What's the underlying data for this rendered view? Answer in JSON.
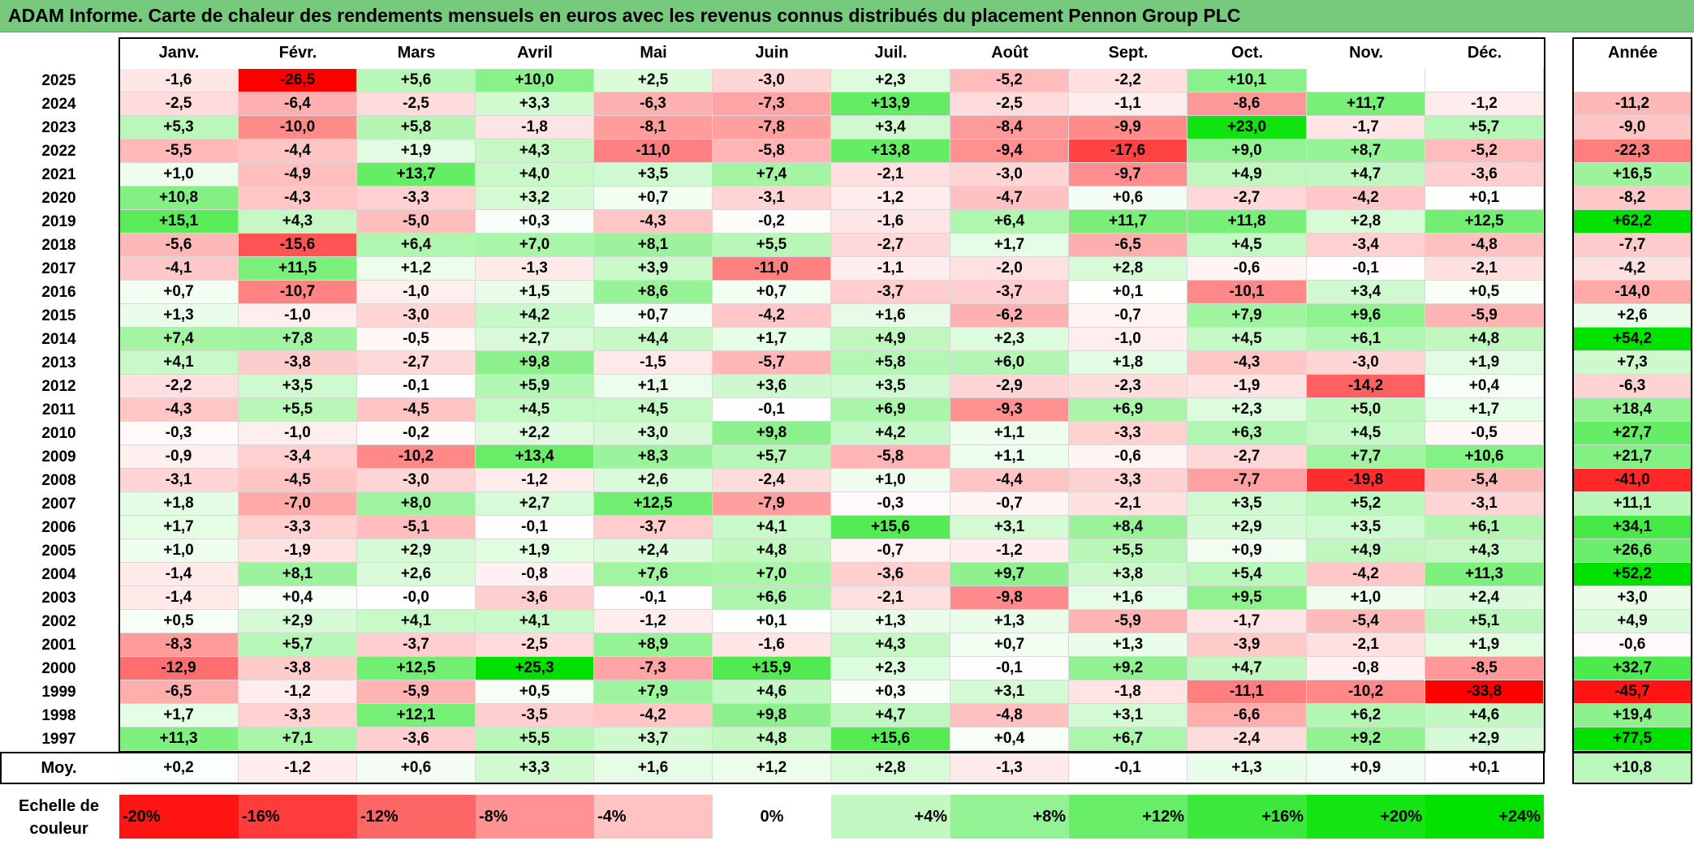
{
  "title": "ADAM Informe. Carte de chaleur des rendements mensuels en euros avec les revenus connus distribués du placement Pennon Group PLC",
  "chart_data": {
    "type": "heatmap",
    "months": [
      "Janv.",
      "Févr.",
      "Mars",
      "Avril",
      "Mai",
      "Juin",
      "Juil.",
      "Août",
      "Sept.",
      "Oct.",
      "Nov.",
      "Déc."
    ],
    "year_header": "Année",
    "rows": [
      {
        "year": "2025",
        "values": [
          "-1,6",
          "-26,5",
          "+5,6",
          "+10,0",
          "+2,5",
          "-3,0",
          "+2,3",
          "-5,2",
          "-2,2",
          "+10,1",
          "",
          ""
        ],
        "annual": ""
      },
      {
        "year": "2024",
        "values": [
          "-2,5",
          "-6,4",
          "-2,5",
          "+3,3",
          "-6,3",
          "-7,3",
          "+13,9",
          "-2,5",
          "-1,1",
          "-8,6",
          "+11,7",
          "-1,2"
        ],
        "annual": "-11,2"
      },
      {
        "year": "2023",
        "values": [
          "+5,3",
          "-10,0",
          "+5,8",
          "-1,8",
          "-8,1",
          "-7,8",
          "+3,4",
          "-8,4",
          "-9,9",
          "+23,0",
          "-1,7",
          "+5,7"
        ],
        "annual": "-9,0"
      },
      {
        "year": "2022",
        "values": [
          "-5,5",
          "-4,4",
          "+1,9",
          "+4,3",
          "-11,0",
          "-5,8",
          "+13,8",
          "-9,4",
          "-17,6",
          "+9,0",
          "+8,7",
          "-5,2"
        ],
        "annual": "-22,3"
      },
      {
        "year": "2021",
        "values": [
          "+1,0",
          "-4,9",
          "+13,7",
          "+4,0",
          "+3,5",
          "+7,4",
          "-2,1",
          "-3,0",
          "-9,7",
          "+4,9",
          "+4,7",
          "-3,6"
        ],
        "annual": "+16,5"
      },
      {
        "year": "2020",
        "values": [
          "+10,8",
          "-4,3",
          "-3,3",
          "+3,2",
          "+0,7",
          "-3,1",
          "-1,2",
          "-4,7",
          "+0,6",
          "-2,7",
          "-4,2",
          "+0,1"
        ],
        "annual": "-8,2"
      },
      {
        "year": "2019",
        "values": [
          "+15,1",
          "+4,3",
          "-5,0",
          "+0,3",
          "-4,3",
          "-0,2",
          "-1,6",
          "+6,4",
          "+11,7",
          "+11,8",
          "+2,8",
          "+12,5"
        ],
        "annual": "+62,2"
      },
      {
        "year": "2018",
        "values": [
          "-5,6",
          "-15,6",
          "+6,4",
          "+7,0",
          "+8,1",
          "+5,5",
          "-2,7",
          "+1,7",
          "-6,5",
          "+4,5",
          "-3,4",
          "-4,8"
        ],
        "annual": "-7,7"
      },
      {
        "year": "2017",
        "values": [
          "-4,1",
          "+11,5",
          "+1,2",
          "-1,3",
          "+3,9",
          "-11,0",
          "-1,1",
          "-2,0",
          "+2,8",
          "-0,6",
          "-0,1",
          "-2,1"
        ],
        "annual": "-4,2"
      },
      {
        "year": "2016",
        "values": [
          "+0,7",
          "-10,7",
          "-1,0",
          "+1,5",
          "+8,6",
          "+0,7",
          "-3,7",
          "-3,7",
          "+0,1",
          "-10,1",
          "+3,4",
          "+0,5"
        ],
        "annual": "-14,0"
      },
      {
        "year": "2015",
        "values": [
          "+1,3",
          "-1,0",
          "-3,0",
          "+4,2",
          "+0,7",
          "-4,2",
          "+1,6",
          "-6,2",
          "-0,7",
          "+7,9",
          "+9,6",
          "-5,9"
        ],
        "annual": "+2,6"
      },
      {
        "year": "2014",
        "values": [
          "+7,4",
          "+7,8",
          "-0,5",
          "+2,7",
          "+4,4",
          "+1,7",
          "+4,9",
          "+2,3",
          "-1,0",
          "+4,5",
          "+6,1",
          "+4,8"
        ],
        "annual": "+54,2"
      },
      {
        "year": "2013",
        "values": [
          "+4,1",
          "-3,8",
          "-2,7",
          "+9,8",
          "-1,5",
          "-5,7",
          "+5,8",
          "+6,0",
          "+1,8",
          "-4,3",
          "-3,0",
          "+1,9"
        ],
        "annual": "+7,3"
      },
      {
        "year": "2012",
        "values": [
          "-2,2",
          "+3,5",
          "-0,1",
          "+5,9",
          "+1,1",
          "+3,6",
          "+3,5",
          "-2,9",
          "-2,3",
          "-1,9",
          "-14,2",
          "+0,4"
        ],
        "annual": "-6,3"
      },
      {
        "year": "2011",
        "values": [
          "-4,3",
          "+5,5",
          "-4,5",
          "+4,5",
          "+4,5",
          "-0,1",
          "+6,9",
          "-9,3",
          "+6,9",
          "+2,3",
          "+5,0",
          "+1,7"
        ],
        "annual": "+18,4"
      },
      {
        "year": "2010",
        "values": [
          "-0,3",
          "-1,0",
          "-0,2",
          "+2,2",
          "+3,0",
          "+9,8",
          "+4,2",
          "+1,1",
          "-3,3",
          "+6,3",
          "+4,5",
          "-0,5"
        ],
        "annual": "+27,7"
      },
      {
        "year": "2009",
        "values": [
          "-0,9",
          "-3,4",
          "-10,2",
          "+13,4",
          "+8,3",
          "+5,7",
          "-5,8",
          "+1,1",
          "-0,6",
          "-2,7",
          "+7,7",
          "+10,6"
        ],
        "annual": "+21,7"
      },
      {
        "year": "2008",
        "values": [
          "-3,1",
          "-4,5",
          "-3,0",
          "-1,2",
          "+2,6",
          "-2,4",
          "+1,0",
          "-4,4",
          "-3,3",
          "-7,7",
          "-19,8",
          "-5,4"
        ],
        "annual": "-41,0"
      },
      {
        "year": "2007",
        "values": [
          "+1,8",
          "-7,0",
          "+8,0",
          "+2,7",
          "+12,5",
          "-7,9",
          "-0,3",
          "-0,7",
          "-2,1",
          "+3,5",
          "+5,2",
          "-3,1"
        ],
        "annual": "+11,1"
      },
      {
        "year": "2006",
        "values": [
          "+1,7",
          "-3,3",
          "-5,1",
          "-0,1",
          "-3,7",
          "+4,1",
          "+15,6",
          "+3,1",
          "+8,4",
          "+2,9",
          "+3,5",
          "+6,1"
        ],
        "annual": "+34,1"
      },
      {
        "year": "2005",
        "values": [
          "+1,0",
          "-1,9",
          "+2,9",
          "+1,9",
          "+2,4",
          "+4,8",
          "-0,7",
          "-1,2",
          "+5,5",
          "+0,9",
          "+4,9",
          "+4,3"
        ],
        "annual": "+26,6"
      },
      {
        "year": "2004",
        "values": [
          "-1,4",
          "+8,1",
          "+2,6",
          "-0,8",
          "+7,6",
          "+7,0",
          "-3,6",
          "+9,7",
          "+3,8",
          "+5,4",
          "-4,2",
          "+11,3"
        ],
        "annual": "+52,2"
      },
      {
        "year": "2003",
        "values": [
          "-1,4",
          "+0,4",
          "-0,0",
          "-3,6",
          "-0,1",
          "+6,6",
          "-2,1",
          "-9,8",
          "+1,6",
          "+9,5",
          "+1,0",
          "+2,4"
        ],
        "annual": "+3,0"
      },
      {
        "year": "2002",
        "values": [
          "+0,5",
          "+2,9",
          "+4,1",
          "+4,1",
          "-1,2",
          "+0,1",
          "+1,3",
          "+1,3",
          "-5,9",
          "-1,7",
          "-5,4",
          "+5,1"
        ],
        "annual": "+4,9"
      },
      {
        "year": "2001",
        "values": [
          "-8,3",
          "+5,7",
          "-3,7",
          "-2,5",
          "+8,9",
          "-1,6",
          "+4,3",
          "+0,7",
          "+1,3",
          "-3,9",
          "-2,1",
          "+1,9"
        ],
        "annual": "-0,6"
      },
      {
        "year": "2000",
        "values": [
          "-12,9",
          "-3,8",
          "+12,5",
          "+25,3",
          "-7,3",
          "+15,9",
          "+2,3",
          "-0,1",
          "+9,2",
          "+4,7",
          "-0,8",
          "-8,5"
        ],
        "annual": "+32,7"
      },
      {
        "year": "1999",
        "values": [
          "-6,5",
          "-1,2",
          "-5,9",
          "+0,5",
          "+7,9",
          "+4,6",
          "+0,3",
          "+3,1",
          "-1,8",
          "-11,1",
          "-10,2",
          "-33,8"
        ],
        "annual": "-45,7"
      },
      {
        "year": "1998",
        "values": [
          "+1,7",
          "-3,3",
          "+12,1",
          "-3,5",
          "-4,2",
          "+9,8",
          "+4,7",
          "-4,8",
          "+3,1",
          "-6,6",
          "+6,2",
          "+4,6"
        ],
        "annual": "+19,4"
      },
      {
        "year": "1997",
        "values": [
          "+11,3",
          "+7,1",
          "-3,6",
          "+5,5",
          "+3,7",
          "+4,8",
          "+15,6",
          "+0,4",
          "+6,7",
          "-2,4",
          "+9,2",
          "+2,9"
        ],
        "annual": "+77,5"
      }
    ],
    "average": {
      "label": "Moy.",
      "values": [
        "+0,2",
        "-1,2",
        "+0,6",
        "+3,3",
        "+1,6",
        "+1,2",
        "+2,8",
        "-1,3",
        "-0,1",
        "+1,3",
        "+0,9",
        "+0,1"
      ],
      "annual": "+10,8"
    },
    "scale": {
      "label_line1": "Echelle de",
      "label_line2": "couleur",
      "steps": [
        "-20%",
        "-16%",
        "-12%",
        "-8%",
        "-4%",
        "0%",
        "+4%",
        "+8%",
        "+12%",
        "+16%",
        "+20%",
        "+24%"
      ]
    },
    "colors": {
      "title_bg": "#77c97e",
      "negative_max": "#ff0000",
      "positive_max": "#00e000",
      "neutral": "#ffffff"
    }
  }
}
